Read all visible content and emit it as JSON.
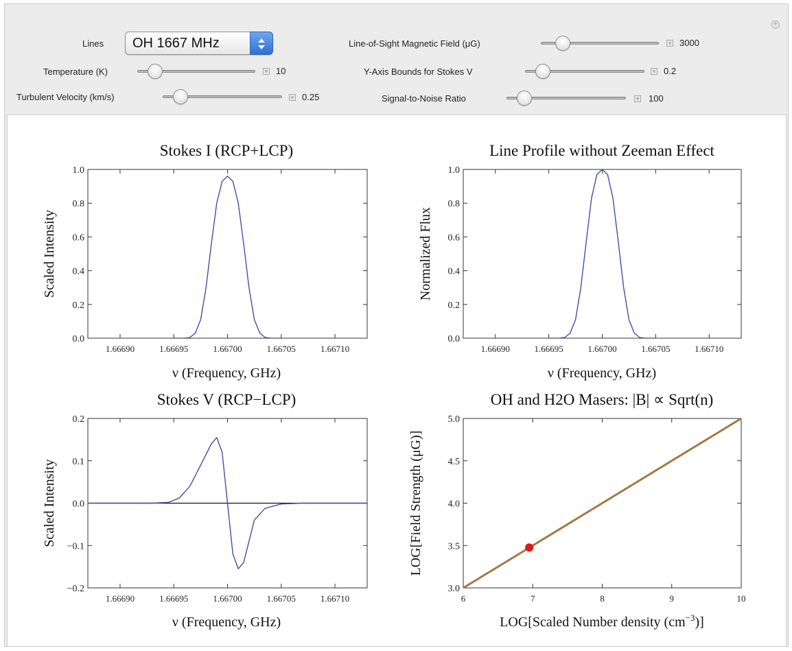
{
  "controls": {
    "lines": {
      "label": "Lines",
      "value": "OH 1667 MHz"
    },
    "temperature": {
      "label": "Temperature (K)",
      "value": "10",
      "position": 0.1
    },
    "turbulent_velocity": {
      "label": "Turbulent Velocity (km/s)",
      "value": "0.25",
      "position": 0.1
    },
    "magnetic_field": {
      "label": "Line-of-Sight Magnetic Field (μG)",
      "value": "3000",
      "position": 0.14
    },
    "y_bounds": {
      "label": "Y-Axis Bounds for Stokes V",
      "value": "0.2",
      "position": 0.1
    },
    "snr": {
      "label": "Signal-to-Noise Ratio",
      "value": "100",
      "position": 0.1
    },
    "plus_glyph": "+"
  },
  "chart_data": [
    {
      "type": "line",
      "title": "Stokes I (RCP+LCP)",
      "xlabel": "ν (Frequency, GHz)",
      "ylabel": "Scaled Intensity",
      "xlim": [
        1.66687,
        1.66713
      ],
      "ylim": [
        0.0,
        1.0
      ],
      "xticks": [
        1.6669,
        1.66695,
        1.667,
        1.66705,
        1.6671
      ],
      "xtick_labels": [
        "1.66690",
        "1.66695",
        "1.66700",
        "1.66705",
        "1.66710"
      ],
      "yticks": [
        0.0,
        0.2,
        0.4,
        0.6,
        0.8,
        1.0
      ],
      "ytick_labels": [
        "0.0",
        "0.2",
        "0.4",
        "0.6",
        "0.8",
        "1.0"
      ],
      "series": [
        {
          "x": [
            1.66695,
            1.666955,
            1.66696,
            1.666965,
            1.66697,
            1.666975,
            1.66698,
            1.666985,
            1.66699,
            1.666995,
            1.667,
            1.667005,
            1.66701,
            1.667015,
            1.66702,
            1.667025,
            1.66703,
            1.667035,
            1.66704,
            1.667045,
            1.66705
          ],
          "values": [
            0.0,
            0.0,
            0.0,
            0.004,
            0.03,
            0.11,
            0.3,
            0.56,
            0.8,
            0.93,
            0.96,
            0.93,
            0.8,
            0.56,
            0.3,
            0.11,
            0.03,
            0.004,
            0.0,
            0.0,
            0.0
          ],
          "color": "#4a4aa8"
        }
      ]
    },
    {
      "type": "line",
      "title": "Line Profile without Zeeman Effect",
      "xlabel": "ν (Frequency, GHz)",
      "ylabel": "Normalized Flux",
      "xlim": [
        1.66687,
        1.66713
      ],
      "ylim": [
        0.0,
        1.0
      ],
      "xticks": [
        1.6669,
        1.66695,
        1.667,
        1.66705,
        1.6671
      ],
      "xtick_labels": [
        "1.66690",
        "1.66695",
        "1.66700",
        "1.66705",
        "1.66710"
      ],
      "yticks": [
        0.0,
        0.2,
        0.4,
        0.6,
        0.8,
        1.0
      ],
      "ytick_labels": [
        "0.0",
        "0.2",
        "0.4",
        "0.6",
        "0.8",
        "1.0"
      ],
      "series": [
        {
          "x": [
            1.66695,
            1.666955,
            1.66696,
            1.666965,
            1.66697,
            1.666975,
            1.66698,
            1.666985,
            1.66699,
            1.666995,
            1.667,
            1.667005,
            1.66701,
            1.667015,
            1.66702,
            1.667025,
            1.66703,
            1.667035,
            1.66704,
            1.667045,
            1.66705
          ],
          "values": [
            0.0,
            0.0,
            0.0,
            0.004,
            0.03,
            0.11,
            0.3,
            0.57,
            0.83,
            0.97,
            1.0,
            0.97,
            0.83,
            0.57,
            0.3,
            0.11,
            0.03,
            0.004,
            0.0,
            0.0,
            0.0
          ],
          "color": "#4a4aa8"
        }
      ]
    },
    {
      "type": "line",
      "title": "Stokes V (RCP−LCP)",
      "xlabel": "ν (Frequency, GHz)",
      "ylabel": "Scaled Intensity",
      "xlim": [
        1.66687,
        1.66713
      ],
      "ylim": [
        -0.2,
        0.2
      ],
      "xticks": [
        1.6669,
        1.66695,
        1.667,
        1.66705,
        1.6671
      ],
      "xtick_labels": [
        "1.66690",
        "1.66695",
        "1.66700",
        "1.66705",
        "1.66710"
      ],
      "yticks": [
        -0.2,
        -0.1,
        0.0,
        0.1,
        0.2
      ],
      "ytick_labels": [
        "−0.2",
        "−0.1",
        "0.0",
        "0.1",
        "0.2"
      ],
      "zero_line": true,
      "series": [
        {
          "x": [
            1.66687,
            1.66689,
            1.66691,
            1.66693,
            1.666945,
            1.666955,
            1.666965,
            1.666975,
            1.666985,
            1.66699,
            1.666995,
            1.667,
            1.667005,
            1.66701,
            1.667015,
            1.66702,
            1.667025,
            1.667035,
            1.66705,
            1.66707,
            1.66709,
            1.66711,
            1.66713
          ],
          "values": [
            0.0,
            0.0,
            0.0,
            0.0,
            0.002,
            0.012,
            0.04,
            0.09,
            0.14,
            0.155,
            0.12,
            0.0,
            -0.12,
            -0.155,
            -0.14,
            -0.09,
            -0.04,
            -0.012,
            -0.002,
            0.0,
            0.0,
            0.0,
            0.0
          ],
          "color": "#4a4aa8"
        }
      ]
    },
    {
      "type": "line",
      "title": "OH and H2O Masers: |B| ∝ Sqrt(n)",
      "xlabel": "LOG[Scaled Number density (cm",
      "xlabel_sup": "−3",
      "xlabel_end": ")]",
      "ylabel": "LOG[Field Strength (μG)]",
      "xlim": [
        6,
        10
      ],
      "ylim": [
        3.0,
        5.0
      ],
      "xticks": [
        6,
        7,
        8,
        9,
        10
      ],
      "xtick_labels": [
        "6",
        "7",
        "8",
        "9",
        "10"
      ],
      "yticks": [
        3.0,
        3.5,
        4.0,
        4.5,
        5.0
      ],
      "ytick_labels": [
        "3.0",
        "3.5",
        "4.0",
        "4.5",
        "5.0"
      ],
      "series": [
        {
          "x": [
            6,
            10
          ],
          "values": [
            3.0,
            5.0
          ],
          "color": "#a07a45"
        }
      ],
      "marker": {
        "x": 6.95,
        "y": 3.477,
        "color": "#e01818"
      }
    }
  ]
}
